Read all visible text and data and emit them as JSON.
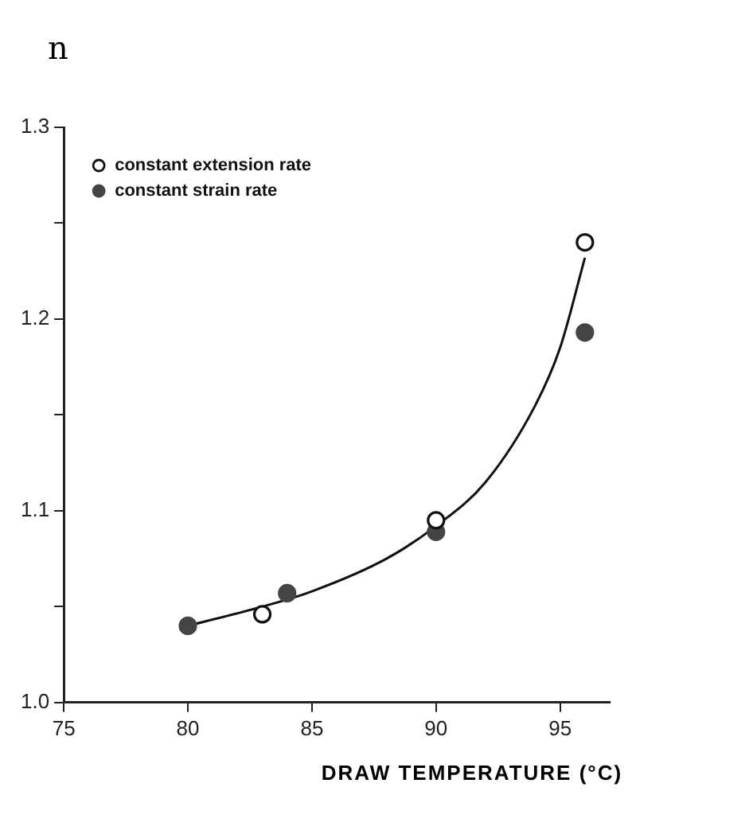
{
  "chart_data": {
    "type": "scatter",
    "ylabel": "n",
    "xlabel": "DRAW TEMPERATURE (°C)",
    "xlim": [
      75,
      97
    ],
    "xticks": [
      75,
      80,
      85,
      90,
      95
    ],
    "ylim": [
      1.0,
      1.3
    ],
    "yticks": [
      {
        "value": 1.0,
        "label": "1.0"
      },
      {
        "value": 1.05,
        "label": null
      },
      {
        "value": 1.1,
        "label": "1.1"
      },
      {
        "value": 1.15,
        "label": null
      },
      {
        "value": 1.2,
        "label": "1.2"
      },
      {
        "value": 1.25,
        "label": null
      },
      {
        "value": 1.3,
        "label": "1.3"
      }
    ],
    "grid": false,
    "legend": "top left",
    "marker": "circle",
    "series": [
      {
        "name": "constant extension rate",
        "color": "#111111",
        "x": [
          83,
          90,
          96
        ],
        "values": [
          1.046,
          1.095,
          1.24
        ]
      },
      {
        "name": "constant strain rate",
        "color": "#444444",
        "x": [
          80,
          84,
          90,
          96
        ],
        "values": [
          1.04,
          1.057,
          1.089,
          1.193
        ]
      },
      {
        "type": "line",
        "color": "#111111",
        "marker": "none",
        "x": [
          80,
          83,
          85,
          88,
          90,
          92,
          94,
          95,
          96
        ],
        "values": [
          1.04,
          1.05,
          1.058,
          1.075,
          1.092,
          1.115,
          1.155,
          1.185,
          1.232
        ]
      }
    ]
  }
}
